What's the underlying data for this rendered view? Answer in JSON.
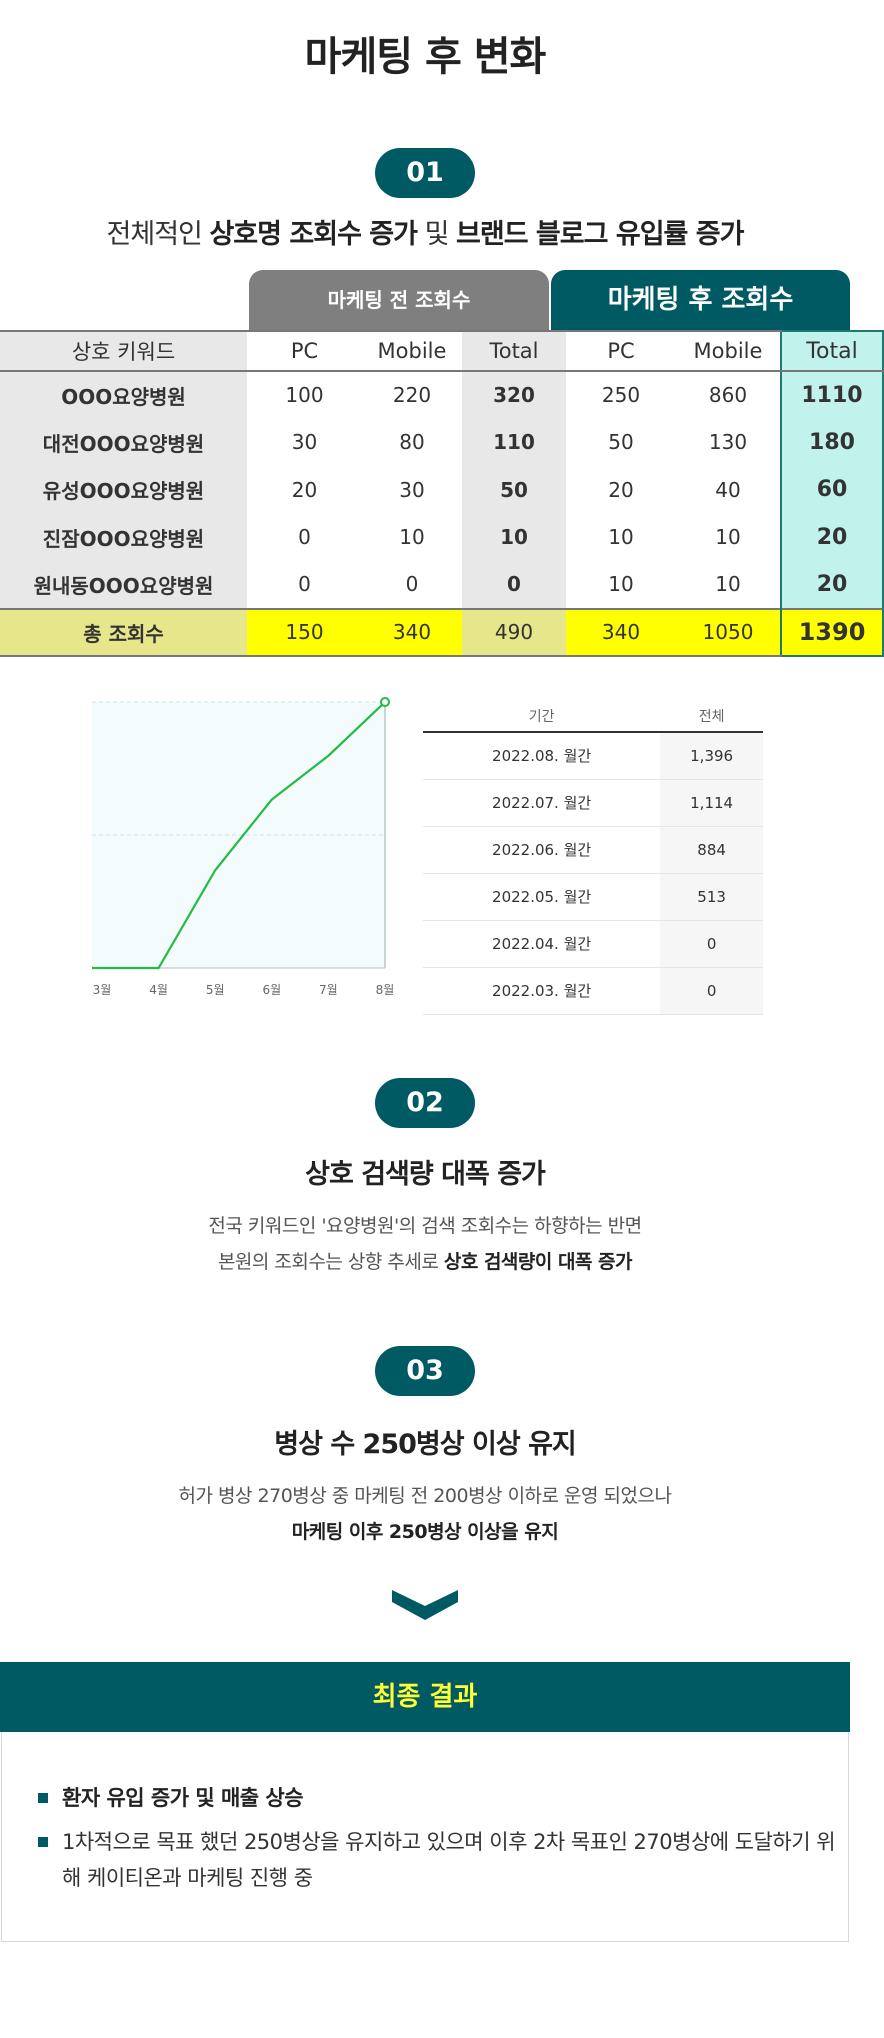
{
  "main_title": "마케팅 후 변화",
  "section1": {
    "number": "01",
    "subtitle_pre": "전체적인 ",
    "subtitle_b1": "상호명 조회수 증가",
    "subtitle_mid": " 및 ",
    "subtitle_b2": "브랜드 블로그 유입률 증가"
  },
  "table": {
    "header_before": "마케팅 전 조회수",
    "header_after": "마케팅 후 조회수",
    "columns": [
      "상호 키워드",
      "PC",
      "Mobile",
      "Total",
      "PC",
      "Mobile",
      "Total"
    ],
    "rows": [
      [
        "OOO요양병원",
        "100",
        "220",
        "320",
        "250",
        "860",
        "1110"
      ],
      [
        "대전OOO요양병원",
        "30",
        "80",
        "110",
        "50",
        "130",
        "180"
      ],
      [
        "유성OOO요양병원",
        "20",
        "30",
        "50",
        "20",
        "40",
        "60"
      ],
      [
        "진잠OOO요양병원",
        "0",
        "10",
        "10",
        "10",
        "10",
        "20"
      ],
      [
        "원내동OOO요양병원",
        "0",
        "0",
        "0",
        "10",
        "10",
        "20"
      ]
    ],
    "sum_row": [
      "총 조회수",
      "150",
      "340",
      "490",
      "340",
      "1050",
      "1390"
    ]
  },
  "chart_data": {
    "type": "line",
    "categories": [
      "3월",
      "4월",
      "5월",
      "6월",
      "7월",
      "8월"
    ],
    "series": [
      {
        "values": [
          0,
          0,
          513,
          884,
          1114,
          1396
        ]
      }
    ],
    "ylim": [
      0,
      1396
    ],
    "grid": true,
    "line_color": "#22bb44"
  },
  "period_table": {
    "headers": [
      "기간",
      "전체"
    ],
    "rows": [
      [
        "2022.08. 월간",
        "1,396"
      ],
      [
        "2022.07. 월간",
        "1,114"
      ],
      [
        "2022.06. 월간",
        "884"
      ],
      [
        "2022.05. 월간",
        "513"
      ],
      [
        "2022.04. 월간",
        "0"
      ],
      [
        "2022.03. 월간",
        "0"
      ]
    ]
  },
  "section2": {
    "number": "02",
    "title": "상호 검색량 대폭 증가",
    "line1": "전국 키워드인 '요양병원'의 검색 조회수는 하향하는 반면",
    "line2_pre": "본원의 조회수는 상향 추세로 ",
    "line2_b": "상호 검색량이 대폭 증가"
  },
  "section3": {
    "number": "03",
    "title": "병상 수 250병상 이상 유지",
    "line1": "허가 병상 270병상 중 마케팅 전 200병상 이하로 운영 되었으나",
    "line2_b": "마케팅 이후 250병상 이상을 유지"
  },
  "result": {
    "title": "최종 결과",
    "items": [
      "환자 유입 증가 및 매출 상승",
      "1차적으로 목표 했던 250병상을 유지하고 있으며 이후 2차 목표인 270병상에 도달하기 위해 케이티온과 마케팅 진행 중"
    ]
  },
  "colors": {
    "primary": "#005a63",
    "highlight": "#ffff00",
    "after_total": "#c2f2ec",
    "result_title": "#ffff33"
  }
}
